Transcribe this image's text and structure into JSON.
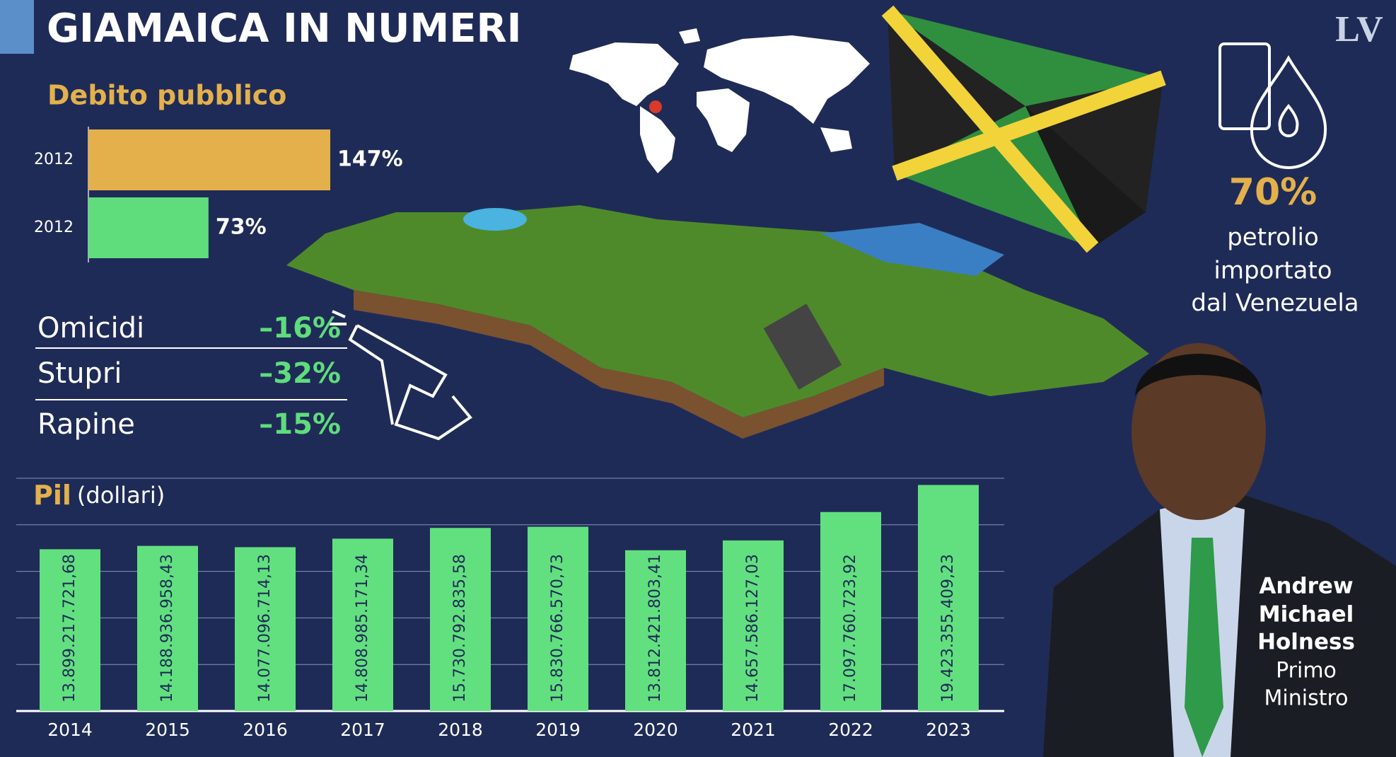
{
  "header": {
    "title": "GIAMAICA IN NUMERI",
    "logo": "LV"
  },
  "chart_data": [
    {
      "type": "bar",
      "orientation": "horizontal",
      "title": "Debito pubblico",
      "categories": [
        "2012",
        "2012"
      ],
      "values": [
        147,
        73
      ],
      "value_labels": [
        "147%",
        "73%"
      ],
      "colors": [
        "#e3b04b",
        "#5fdc7c"
      ]
    },
    {
      "type": "bar",
      "orientation": "vertical",
      "title": "Pil",
      "subtitle": "(dollari)",
      "categories": [
        "2014",
        "2015",
        "2016",
        "2017",
        "2018",
        "2019",
        "2020",
        "2021",
        "2022",
        "2023"
      ],
      "values": [
        13899217721.68,
        14188936958.43,
        14077096714.13,
        14808985171.34,
        15730792835.58,
        15830766570.73,
        13812421803.41,
        14657586127.03,
        17097760723.92,
        19423355409.23
      ],
      "value_labels": [
        "13.899.217.721,68",
        "14.188.936.958,43",
        "14.077.096.714,13",
        "14.808.985.171,34",
        "15.730.792.835,58",
        "15.830.766.570,73",
        "13.812.421.803,41",
        "14.657.586.127,03",
        "17.097.760.723,92",
        "19.423.355.409,23"
      ],
      "color": "#62e07f",
      "ylim": [
        0,
        20000000000
      ],
      "yticks": [
        0,
        4000000000,
        8000000000,
        12000000000,
        16000000000,
        20000000000
      ],
      "grid": true
    }
  ],
  "crime": {
    "rows": [
      [
        "Omicidi",
        "–16%"
      ],
      [
        "Stupri",
        "–32%"
      ],
      [
        "Rapine",
        "–15%"
      ]
    ]
  },
  "oil": {
    "value": "70%",
    "lines": [
      "petrolio",
      "importato",
      "dal Venezuela"
    ]
  },
  "person": {
    "name": [
      "Andrew",
      "Michael",
      "Holness"
    ],
    "role": [
      "Primo",
      "Ministro"
    ]
  }
}
